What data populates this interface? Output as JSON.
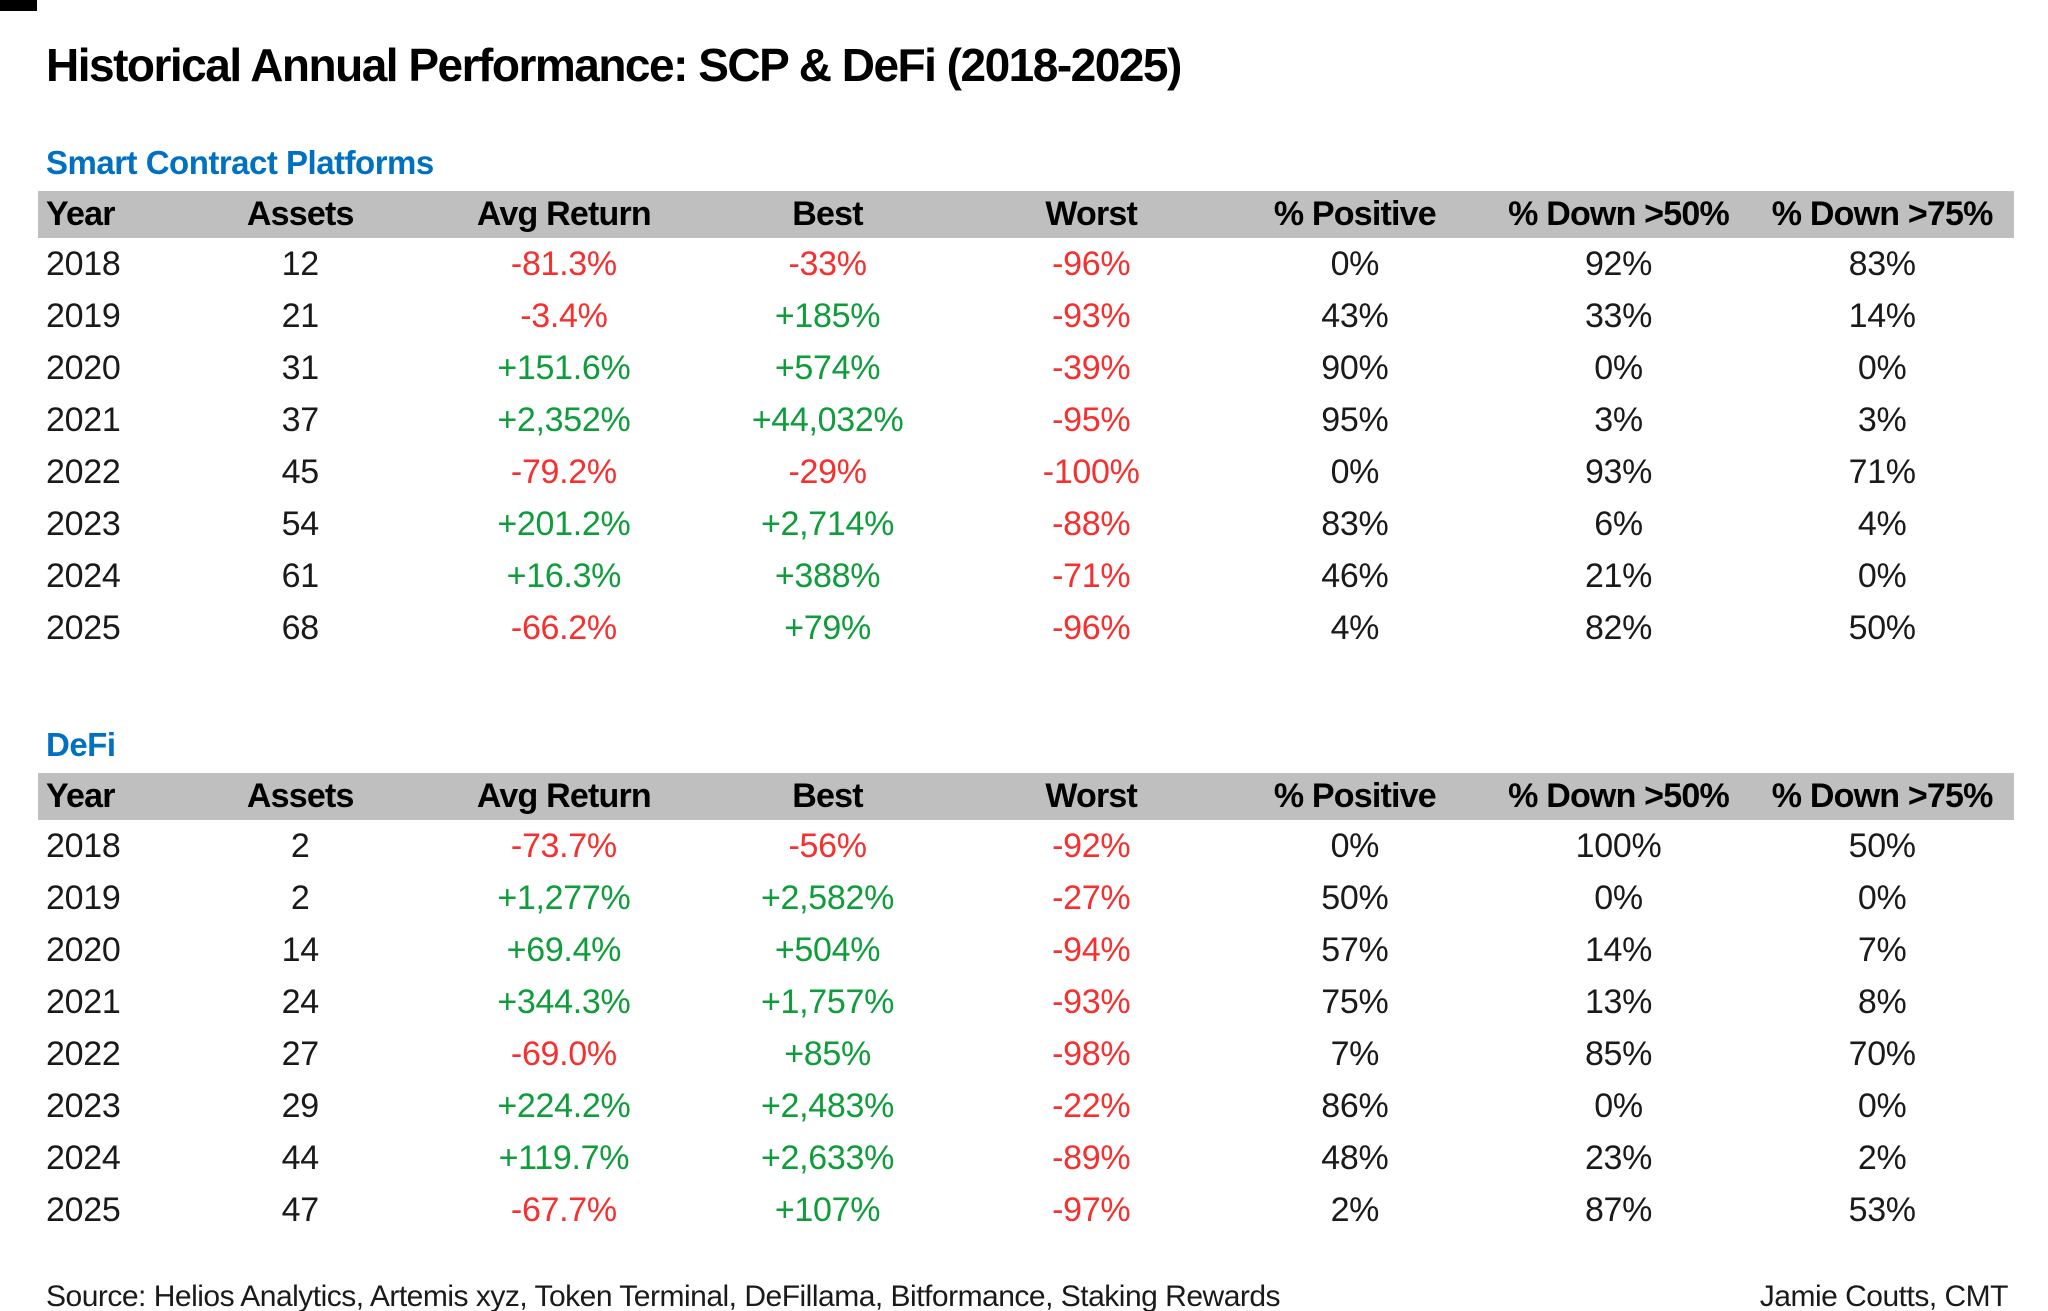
{
  "title": "Historical Annual Performance: SCP & DeFi (2018-2025)",
  "colors": {
    "section_blue": "#0070C0",
    "positive_green": "#0f9d3c",
    "negative_red": "#f62f2f",
    "header_band_gray": "#BFBFBF",
    "text_black": "#1a1a1a"
  },
  "chart_data": [
    {
      "type": "table",
      "title": "Smart Contract Platforms",
      "columns": [
        "Year",
        "Assets",
        "Avg Return",
        "Best",
        "Worst",
        "% Positive",
        "% Down >50%",
        "% Down >75%"
      ],
      "column_keys": [
        "year",
        "assets",
        "avg-return",
        "best",
        "worst",
        "pct-positive",
        "pct-down-50",
        "pct-down-75"
      ],
      "rows": [
        [
          "2018",
          "12",
          "-81.3%",
          "-33%",
          "-96%",
          "0%",
          "92%",
          "83%"
        ],
        [
          "2019",
          "21",
          "-3.4%",
          "+185%",
          "-93%",
          "43%",
          "33%",
          "14%"
        ],
        [
          "2020",
          "31",
          "+151.6%",
          "+574%",
          "-39%",
          "90%",
          "0%",
          "0%"
        ],
        [
          "2021",
          "37",
          "+2,352%",
          "+44,032%",
          "-95%",
          "95%",
          "3%",
          "3%"
        ],
        [
          "2022",
          "45",
          "-79.2%",
          "-29%",
          "-100%",
          "0%",
          "93%",
          "71%"
        ],
        [
          "2023",
          "54",
          "+201.2%",
          "+2,714%",
          "-88%",
          "83%",
          "6%",
          "4%"
        ],
        [
          "2024",
          "61",
          "+16.3%",
          "+388%",
          "-71%",
          "46%",
          "21%",
          "0%"
        ],
        [
          "2025",
          "68",
          "-66.2%",
          "+79%",
          "-96%",
          "4%",
          "82%",
          "50%"
        ]
      ]
    },
    {
      "type": "table",
      "title": "DeFi",
      "columns": [
        "Year",
        "Assets",
        "Avg Return",
        "Best",
        "Worst",
        "% Positive",
        "% Down >50%",
        "% Down >75%"
      ],
      "column_keys": [
        "year",
        "assets",
        "avg-return",
        "best",
        "worst",
        "pct-positive",
        "pct-down-50",
        "pct-down-75"
      ],
      "rows": [
        [
          "2018",
          "2",
          "-73.7%",
          "-56%",
          "-92%",
          "0%",
          "100%",
          "50%"
        ],
        [
          "2019",
          "2",
          "+1,277%",
          "+2,582%",
          "-27%",
          "50%",
          "0%",
          "0%"
        ],
        [
          "2020",
          "14",
          "+69.4%",
          "+504%",
          "-94%",
          "57%",
          "14%",
          "7%"
        ],
        [
          "2021",
          "24",
          "+344.3%",
          "+1,757%",
          "-93%",
          "75%",
          "13%",
          "8%"
        ],
        [
          "2022",
          "27",
          "-69.0%",
          "+85%",
          "-98%",
          "7%",
          "85%",
          "70%"
        ],
        [
          "2023",
          "29",
          "+224.2%",
          "+2,483%",
          "-22%",
          "86%",
          "0%",
          "0%"
        ],
        [
          "2024",
          "44",
          "+119.7%",
          "+2,633%",
          "-89%",
          "48%",
          "23%",
          "2%"
        ],
        [
          "2025",
          "47",
          "-67.7%",
          "+107%",
          "-97%",
          "2%",
          "87%",
          "53%"
        ]
      ]
    }
  ],
  "footer": {
    "source": "Source: Helios Analytics, Artemis xyz, Token Terminal, DeFillama, Bitformance, Staking Rewards",
    "credit": "Jamie Coutts, CMT"
  }
}
